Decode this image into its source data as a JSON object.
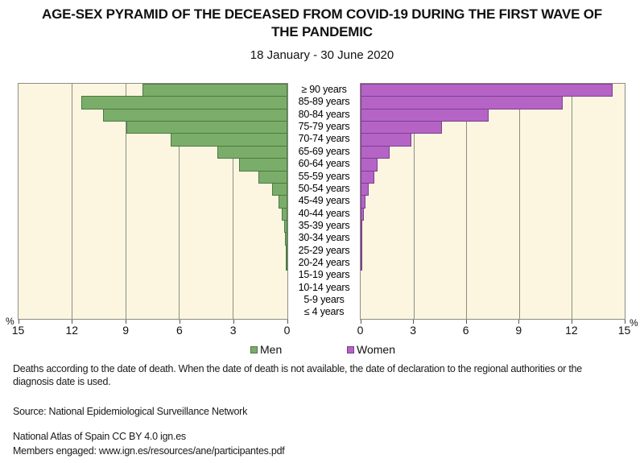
{
  "title": {
    "lines": [
      "AGE-SEX PYRAMID OF THE DECEASED FROM COVID-19 DURING THE FIRST WAVE OF",
      "THE PANDEMIC"
    ]
  },
  "subtitle": "18 January - 30 June 2020",
  "legend": {
    "men": "Men",
    "women": "Women"
  },
  "axis": {
    "percent_left": "%",
    "percent_right": "%",
    "left_ticks": [
      "15",
      "12",
      "9",
      "6",
      "3",
      "0"
    ],
    "right_ticks": [
      "0",
      "3",
      "6",
      "9",
      "12",
      "15"
    ]
  },
  "footnotes": {
    "note_line1": "Deaths according to the date of death. When the date of death is not available, the date of declaration to the regional authorities or the",
    "note_line2": "diagnosis date is used.",
    "source": "Source: National Epidemiological Surveillance Network",
    "attribution": "National Atlas of Spain CC BY 4.0 ign.es",
    "members": "Members engaged: www.ign.es/resources/ane/participantes.pdf"
  },
  "colors": {
    "men_fill": "#7bad6a",
    "men_border": "#4a7a42",
    "women_fill": "#b564c6",
    "women_border": "#7c3f8c",
    "panel_background": "#fcf6e0",
    "panel_border": "#8d8d85"
  },
  "chart_data": {
    "type": "bar",
    "subtype": "population_pyramid",
    "title": "AGE-SEX PYRAMID OF THE DECEASED FROM COVID-19 DURING THE FIRST WAVE OF THE PANDEMIC",
    "subtitle": "18 January - 30 June 2020",
    "xlabel": "%",
    "xlim": [
      0,
      15
    ],
    "gridlines": [
      3,
      6,
      9,
      12
    ],
    "grid": true,
    "legend_position": "bottom",
    "categories": [
      "≥ 90 years",
      "85-89 years",
      "80-84 years",
      "75-79 years",
      "70-74 years",
      "65-69 years",
      "60-64 years",
      "55-59 years",
      "50-54 years",
      "45-49 years",
      "40-44 years",
      "35-39 years",
      "30-34 years",
      "25-29 years",
      "20-24 years",
      "15-19 years",
      "10-14 years",
      "5-9 years",
      "≤ 4 years"
    ],
    "series": [
      {
        "name": "Men",
        "side": "left",
        "values": [
          8.1,
          11.5,
          10.3,
          9.0,
          6.5,
          3.9,
          2.7,
          1.6,
          0.85,
          0.5,
          0.3,
          0.2,
          0.13,
          0.06,
          0.03,
          0,
          0,
          0,
          0
        ]
      },
      {
        "name": "Women",
        "side": "right",
        "values": [
          14.3,
          11.5,
          7.25,
          4.6,
          2.9,
          1.65,
          0.95,
          0.78,
          0.46,
          0.26,
          0.17,
          0.1,
          0.09,
          0.07,
          0.02,
          0,
          0,
          0,
          0
        ]
      }
    ]
  }
}
